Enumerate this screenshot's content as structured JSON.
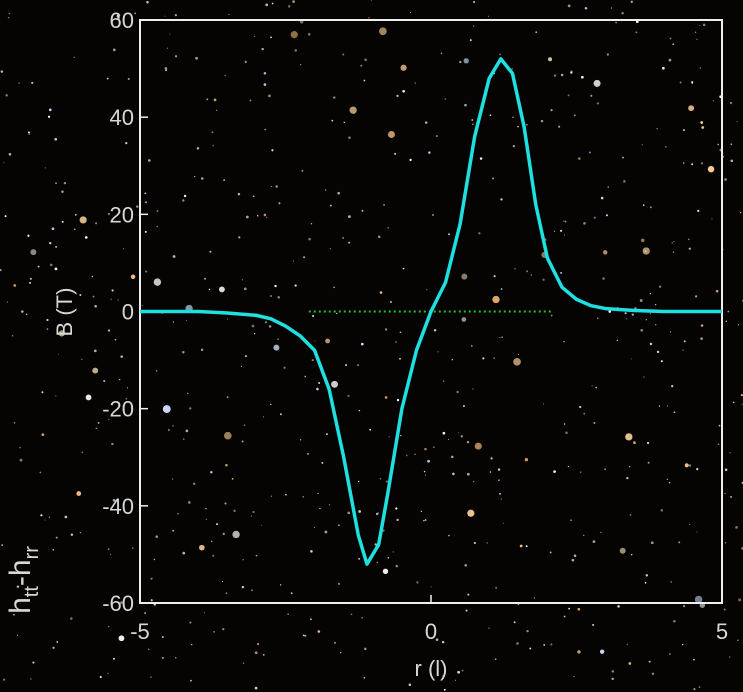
{
  "chart_data": {
    "type": "line",
    "ylabel": "B (T)",
    "xlabel": "r (l)",
    "side_label": [
      "h",
      "tt",
      "-h",
      "rr"
    ],
    "xlim": [
      -5,
      5
    ],
    "xticks": [
      -5,
      0,
      5
    ],
    "ylim": [
      -60,
      60
    ],
    "yticks": [
      -60,
      -40,
      -20,
      0,
      20,
      40,
      60
    ],
    "x": [
      -5,
      -4,
      -3.5,
      -3,
      -2.75,
      -2.5,
      -2.25,
      -2,
      -1.75,
      -1.5,
      -1.25,
      -1.1,
      -0.9,
      -0.75,
      -0.5,
      -0.25,
      0,
      0.25,
      0.5,
      0.75,
      1,
      1.2,
      1.4,
      1.6,
      1.8,
      2,
      2.25,
      2.5,
      2.75,
      3,
      3.5,
      4,
      5
    ],
    "series": [
      {
        "color": "#1ee0e0",
        "values": [
          0,
          0,
          -0.3,
          -0.8,
          -1.5,
          -3,
          -5,
          -8,
          -16,
          -30,
          -46,
          -52,
          -48,
          -38,
          -20,
          -8,
          0,
          6,
          18,
          36,
          48,
          52,
          49,
          38,
          22,
          11,
          5,
          2.5,
          1.2,
          0.6,
          0.2,
          0,
          0
        ]
      }
    ],
    "reference_line": {
      "y": 0,
      "x": [
        -2.1,
        2.1
      ],
      "color": "#22c022"
    }
  }
}
